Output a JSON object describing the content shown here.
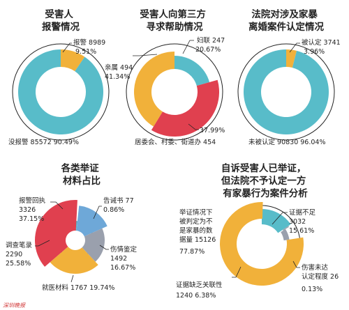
{
  "colors": {
    "teal": "#58bcc9",
    "orange": "#f1b13a",
    "red": "#e0404f",
    "gray": "#9aa0ad",
    "blue": "#6ea8d8",
    "line": "#222222",
    "bg": "#ffffff"
  },
  "chart_data": [
    {
      "type": "pie",
      "title": [
        "受害人",
        "报警情况"
      ],
      "series": [
        {
          "name": "报警",
          "count": "8989",
          "percent": "9.51%",
          "value": 9.51
        },
        {
          "name": "没报警",
          "count": "85572",
          "percent": "90.49%",
          "value": 90.49
        }
      ]
    },
    {
      "type": "pie",
      "title": [
        "受害人向第三方",
        "寻求帮助情况"
      ],
      "series": [
        {
          "name": "妇联",
          "count": "247",
          "percent": "20.67%",
          "value": 20.67
        },
        {
          "name": "居委会、村委、街道办",
          "count": "454",
          "percent": "37.99%",
          "value": 37.99
        },
        {
          "name": "亲属",
          "count": "494",
          "percent": "41.34%",
          "value": 41.34
        }
      ]
    },
    {
      "type": "pie",
      "title": [
        "法院对涉及家暴",
        "离婚案件认定情况"
      ],
      "series": [
        {
          "name": "被认定",
          "count": "3741",
          "percent": "3.96%",
          "value": 3.96
        },
        {
          "name": "未被认定",
          "count": "90830",
          "percent": "96.04%",
          "value": 96.04
        }
      ]
    },
    {
      "type": "pie",
      "title": [
        "各类举证",
        "材料占比"
      ],
      "series": [
        {
          "name": "告诫书",
          "count": "77",
          "percent": "0.86%",
          "value": 0.86
        },
        {
          "name": "伤情鉴定",
          "count": "1492",
          "percent": "16.67%",
          "value": 16.67
        },
        {
          "name": "就医材料",
          "count": "1767",
          "percent": "19.74%",
          "value": 19.74
        },
        {
          "name": "调查笔录",
          "count": "2290",
          "percent": "25.58%",
          "value": 25.58
        },
        {
          "name": "报警回执",
          "count": "3326",
          "percent": "37.15%",
          "value": 37.15
        }
      ]
    },
    {
      "type": "pie",
      "title": [
        "自诉受害人已举证，",
        "但法院不予认定一方",
        "有家暴行为案件分析"
      ],
      "series": [
        {
          "name": "证据不足",
          "count": "3032",
          "percent": "15.61%",
          "value": 15.61
        },
        {
          "name": "伤害未达认定程度",
          "count": "26",
          "percent": "0.13%",
          "value": 0.13
        },
        {
          "name": "证据缺乏关联性",
          "count": "1240",
          "percent": "6.38%",
          "value": 6.38
        },
        {
          "name": "举证情况下被判定为不是家暴的数据量",
          "count": "15126",
          "percent": "77.87%",
          "value": 77.87
        }
      ]
    }
  ],
  "labels": {
    "c1": [
      {
        "lines": [
          "报警 8989",
          "9.51%"
        ]
      },
      {
        "lines": [
          "没报警 85572    90.49%"
        ]
      }
    ],
    "c2": [
      {
        "lines": [
          "妇联 247",
          "20.67%"
        ]
      },
      {
        "lines": [
          "亲属 494",
          "41.34%"
        ]
      },
      {
        "lines": [
          "37.99%",
          "居委会、村委、街道办 454"
        ]
      }
    ],
    "c3": [
      {
        "lines": [
          "被认定 3741",
          "3.96%"
        ]
      },
      {
        "lines": [
          "未被认定 90830  96.04%"
        ]
      }
    ],
    "c4": [
      {
        "lines": [
          "告诫书 77",
          "0.86%"
        ]
      },
      {
        "lines": [
          "报警回执",
          "3326",
          "37.15%"
        ]
      },
      {
        "lines": [
          "伤情鉴定",
          "1492",
          "16.67%"
        ]
      },
      {
        "lines": [
          "调查笔录",
          "2290",
          "25.58%"
        ]
      },
      {
        "lines": [
          "就医材料 1767 19.74%"
        ]
      }
    ],
    "c5": [
      {
        "lines": [
          "举证情况下",
          "被判定为不",
          "是家暴的数",
          "据量 15126",
          "77.87%"
        ]
      },
      {
        "lines": [
          "证据不足",
          "3032",
          "15.61%"
        ]
      },
      {
        "lines": [
          "伤害未达",
          "认定程度 26",
          "0.13%"
        ]
      },
      {
        "lines": [
          "证据缺乏关联性",
          "1240  6.38%"
        ]
      }
    ]
  },
  "watermark": "深圳晚报"
}
